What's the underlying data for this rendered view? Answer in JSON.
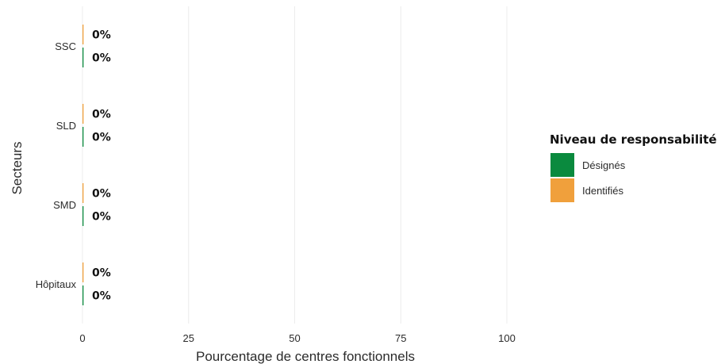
{
  "chart_data": {
    "type": "bar",
    "orientation": "horizontal",
    "categories": [
      "SSC",
      "SLD",
      "SMD",
      "Hôpitaux"
    ],
    "series": [
      {
        "name": "Identifiés",
        "color": "#f0a03c",
        "values": [
          0,
          0,
          0,
          0
        ],
        "labels": [
          "0%",
          "0%",
          "0%",
          "0%"
        ]
      },
      {
        "name": "Désignés",
        "color": "#0a8a3e",
        "values": [
          0,
          0,
          0,
          0
        ],
        "labels": [
          "0%",
          "0%",
          "0%",
          "0%"
        ]
      }
    ],
    "xlabel": "Pourcentage de centres fonctionnels",
    "ylabel": "Secteurs",
    "xlim": [
      0,
      100
    ],
    "xticks": [
      "0",
      "25",
      "50",
      "75",
      "100"
    ],
    "grid": "vertical",
    "legend": {
      "title": "Niveau de responsabilité",
      "placement": "right",
      "items": [
        {
          "label": "Désignés",
          "color": "#0a8a3e"
        },
        {
          "label": "Identifiés",
          "color": "#f0a03c"
        }
      ]
    }
  }
}
